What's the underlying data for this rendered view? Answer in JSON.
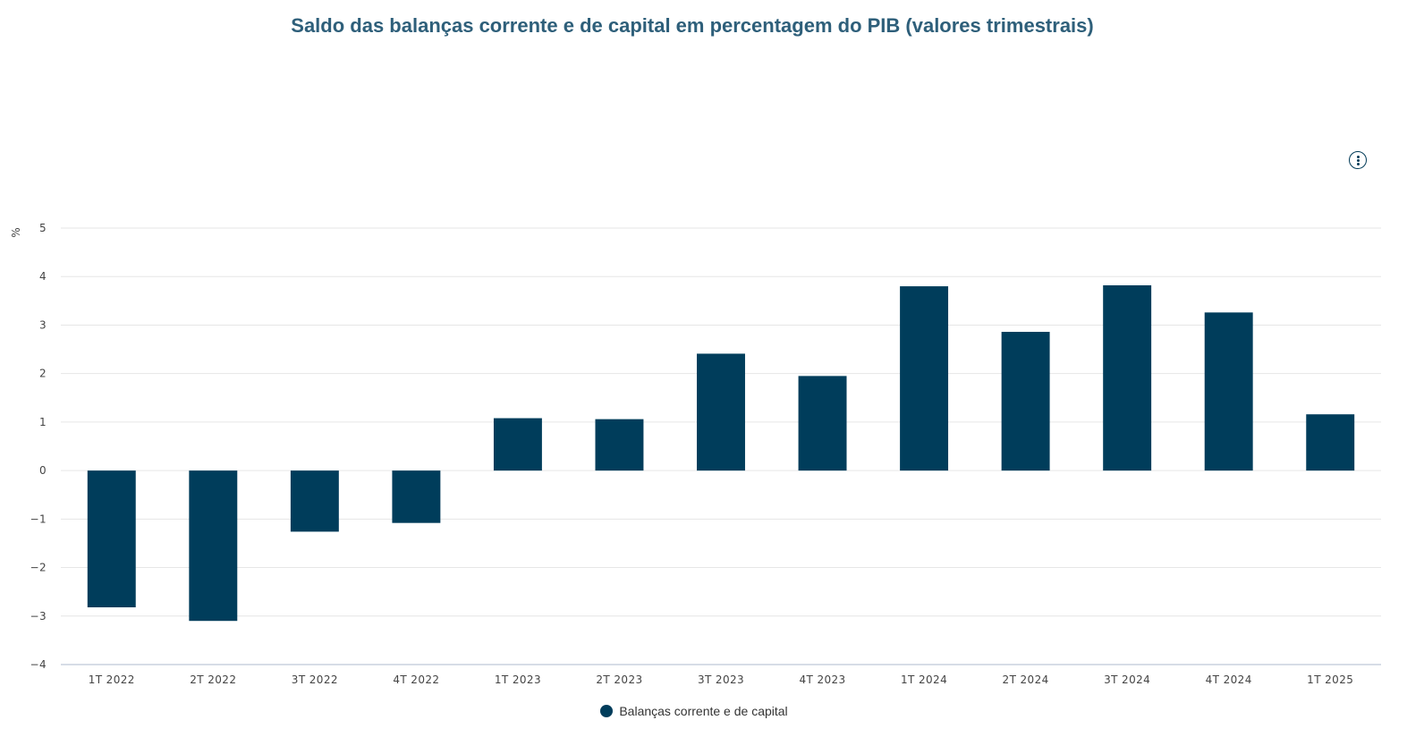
{
  "title": "Saldo das balanças corrente e de capital em percentagem do PIB (valores trimestrais)",
  "menu": {
    "icon": "vertical-dots-icon"
  },
  "chart_data": {
    "type": "bar",
    "title": "Saldo das balanças corrente e de capital em percentagem do PIB (valores trimestrais)",
    "xlabel": "",
    "ylabel": "%",
    "ylim": [
      -4,
      5
    ],
    "yticks": [
      5,
      4,
      3,
      2,
      1,
      0,
      -1,
      -2,
      -3,
      -4
    ],
    "ytick_labels": [
      "5",
      "4",
      "3",
      "2",
      "1",
      "0",
      "−1",
      "−2",
      "−3",
      "−4"
    ],
    "categories": [
      "1T 2022",
      "2T 2022",
      "3T 2022",
      "4T 2022",
      "1T 2023",
      "2T 2023",
      "3T 2023",
      "4T 2023",
      "1T 2024",
      "2T 2024",
      "3T 2024",
      "4T 2024",
      "1T 2025"
    ],
    "series": [
      {
        "name": "Balanças corrente e de capital",
        "color": "#003d5b",
        "values": [
          -2.82,
          -3.1,
          -1.26,
          -1.08,
          1.08,
          1.06,
          2.41,
          1.95,
          3.8,
          2.86,
          3.82,
          3.26,
          1.16
        ]
      }
    ],
    "grid": true,
    "legend": "bottom-center"
  }
}
